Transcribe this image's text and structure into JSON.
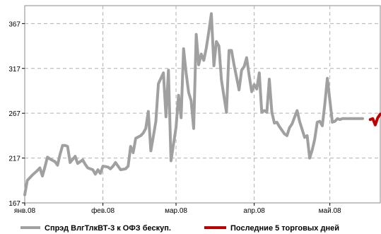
{
  "chart_data": {
    "type": "line",
    "title": "",
    "xlabel": "",
    "ylabel": "",
    "ylim": [
      167,
      387
    ],
    "yticks": [
      167,
      217,
      267,
      317,
      367
    ],
    "xlim": [
      "2008-01-01",
      "2008-05-21"
    ],
    "xticks": [
      {
        "date": "2008-01-01",
        "label": "янв.08"
      },
      {
        "date": "2008-02-01",
        "label": "фев.08"
      },
      {
        "date": "2008-03-01",
        "label": "мар.08"
      },
      {
        "date": "2008-04-01",
        "label": "апр.08"
      },
      {
        "date": "2008-05-01",
        "label": "май.08"
      }
    ],
    "grid": true,
    "legend_position": "bottom",
    "series": [
      {
        "name": "Спрэд ВлгТлкВТ-3 к ОФЗ бескуп.",
        "color": "#a0a0a0",
        "x": [
          "2008-01-01",
          "2008-01-02",
          "2008-01-04",
          "2008-01-06",
          "2008-01-07",
          "2008-01-08",
          "2008-01-09",
          "2008-01-10",
          "2008-01-11",
          "2008-01-13",
          "2008-01-14",
          "2008-01-15",
          "2008-01-16",
          "2008-01-17",
          "2008-01-18",
          "2008-01-19",
          "2008-01-21",
          "2008-01-22",
          "2008-01-24",
          "2008-01-25",
          "2008-01-26",
          "2008-01-28",
          "2008-01-29",
          "2008-01-30",
          "2008-01-31",
          "2008-02-01",
          "2008-02-03",
          "2008-02-04",
          "2008-02-05",
          "2008-02-06",
          "2008-02-07",
          "2008-02-08",
          "2008-02-10",
          "2008-02-11",
          "2008-02-12",
          "2008-02-13",
          "2008-02-14",
          "2008-02-16",
          "2008-02-17",
          "2008-02-18",
          "2008-02-19",
          "2008-02-20",
          "2008-02-21",
          "2008-02-22",
          "2008-02-23",
          "2008-02-25",
          "2008-02-26",
          "2008-02-27",
          "2008-02-28",
          "2008-03-01",
          "2008-03-02",
          "2008-03-03",
          "2008-03-04",
          "2008-03-05",
          "2008-03-06",
          "2008-03-07",
          "2008-03-08",
          "2008-03-09",
          "2008-03-10",
          "2008-03-11",
          "2008-03-12",
          "2008-03-13",
          "2008-03-14",
          "2008-03-15",
          "2008-03-16",
          "2008-03-17",
          "2008-03-18",
          "2008-03-19",
          "2008-03-20",
          "2008-03-21",
          "2008-03-22",
          "2008-03-23",
          "2008-03-24",
          "2008-03-25",
          "2008-03-26",
          "2008-03-27",
          "2008-03-28",
          "2008-03-29",
          "2008-03-30",
          "2008-03-31",
          "2008-04-01",
          "2008-04-02",
          "2008-04-03",
          "2008-04-04",
          "2008-04-05",
          "2008-04-06",
          "2008-04-07",
          "2008-04-08",
          "2008-04-09",
          "2008-04-10",
          "2008-04-11",
          "2008-04-12",
          "2008-04-13",
          "2008-04-14",
          "2008-04-15",
          "2008-04-16",
          "2008-04-18",
          "2008-04-19",
          "2008-04-21",
          "2008-04-22",
          "2008-04-23",
          "2008-04-24",
          "2008-04-25",
          "2008-04-26",
          "2008-04-27",
          "2008-04-28",
          "2008-04-29",
          "2008-04-30",
          "2008-05-02",
          "2008-05-03",
          "2008-05-04",
          "2008-05-05",
          "2008-05-06",
          "2008-05-07",
          "2008-05-08",
          "2008-05-09",
          "2008-05-10",
          "2008-05-11",
          "2008-05-12",
          "2008-05-13",
          "2008-05-14"
        ],
        "values": [
          176,
          192,
          198,
          203,
          206,
          197,
          207,
          218,
          216,
          213,
          209,
          221,
          231,
          231,
          230,
          212,
          219,
          211,
          215,
          210,
          206,
          204,
          199,
          204,
          200,
          208,
          207,
          205,
          208,
          212,
          208,
          204,
          205,
          208,
          230,
          223,
          239,
          242,
          245,
          250,
          269,
          225,
          241,
          258,
          300,
          312,
          263,
          315,
          214,
          251,
          287,
          262,
          339,
          312,
          290,
          281,
          250,
          355,
          321,
          333,
          326,
          340,
          358,
          378,
          320,
          347,
          342,
          304,
          286,
          268,
          337,
          337,
          321,
          307,
          293,
          315,
          319,
          329,
          309,
          291,
          299,
          294,
          312,
          268,
          270,
          268,
          305,
          268,
          256,
          257,
          252,
          248,
          244,
          242,
          251,
          255,
          270,
          258,
          240,
          242,
          217,
          226,
          238,
          257,
          258,
          253,
          277,
          306,
          257,
          258,
          261,
          260,
          261,
          261,
          261,
          261,
          261,
          261,
          261,
          261,
          261
        ]
      },
      {
        "name": "Последние 5 торговых дней",
        "color": "#c00000",
        "x": [
          "2008-05-17",
          "2008-05-18",
          "2008-05-19",
          "2008-05-20",
          "2008-05-21"
        ],
        "values": [
          260,
          261,
          254,
          262,
          266
        ]
      }
    ]
  }
}
